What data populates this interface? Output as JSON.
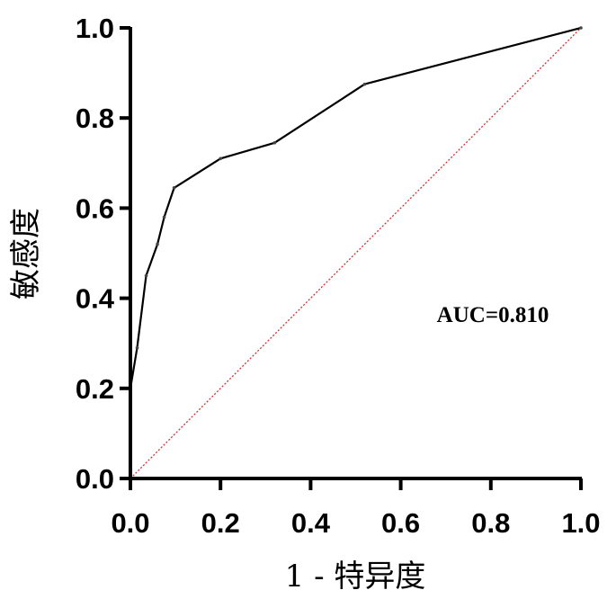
{
  "chart_data": {
    "type": "line",
    "xlabel": "1 - 特异度",
    "ylabel": "敏感度",
    "xlim": [
      0,
      1
    ],
    "ylim": [
      0,
      1
    ],
    "xticks": [
      "0.0",
      "0.2",
      "0.4",
      "0.6",
      "0.8",
      "1.0"
    ],
    "yticks": [
      "0.0",
      "0.2",
      "0.4",
      "0.6",
      "0.8",
      "1.0"
    ],
    "grid": false,
    "annotation": "AUC=0.810",
    "series": [
      {
        "color": "#000000",
        "style": "solid",
        "x": [
          0,
          0,
          0.015,
          0.035,
          0.06,
          0.075,
          0.097,
          0.2,
          0.32,
          0.52,
          1.0
        ],
        "y": [
          0,
          0.2,
          0.29,
          0.45,
          0.52,
          0.58,
          0.645,
          0.71,
          0.745,
          0.875,
          1.0
        ]
      },
      {
        "color": "#d2322d",
        "style": "dotted",
        "x": [
          0,
          1
        ],
        "y": [
          0,
          1
        ]
      }
    ]
  }
}
